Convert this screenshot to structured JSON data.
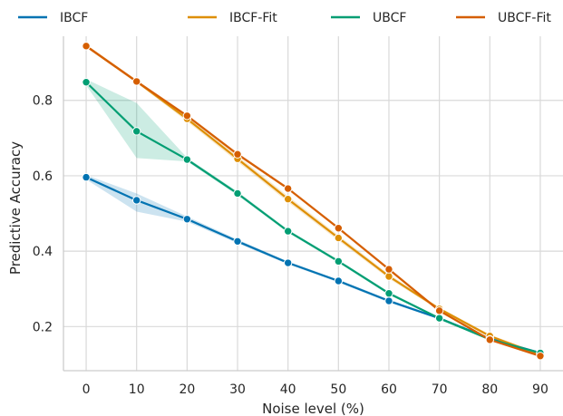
{
  "chart_data": {
    "type": "line",
    "title": "",
    "xlabel": "Noise level (%)",
    "ylabel": "Predictive Accuracy",
    "x": [
      0,
      10,
      20,
      30,
      40,
      50,
      60,
      70,
      80,
      90
    ],
    "xticks": [
      "0",
      "10",
      "20",
      "30",
      "40",
      "50",
      "60",
      "70",
      "80",
      "90"
    ],
    "yticks": [
      "0.2",
      "0.4",
      "0.6",
      "0.8"
    ],
    "xlim": [
      -4.5,
      94.5
    ],
    "ylim": [
      0.083,
      0.97
    ],
    "grid": true,
    "legend_position": "top",
    "series": [
      {
        "name": "IBCF",
        "color": "#0173b2",
        "values": [
          0.596,
          0.535,
          0.485,
          0.426,
          0.369,
          0.321,
          0.268,
          0.222,
          0.168,
          0.13
        ],
        "lower": [
          0.59,
          0.505,
          0.478,
          0.421,
          0.365,
          0.317,
          0.264,
          0.219,
          0.165,
          0.127
        ],
        "upper": [
          0.602,
          0.553,
          0.492,
          0.431,
          0.373,
          0.325,
          0.272,
          0.225,
          0.171,
          0.133
        ]
      },
      {
        "name": "IBCF-Fit",
        "color": "#de8f05",
        "values": [
          0.944,
          0.85,
          0.751,
          0.645,
          0.538,
          0.435,
          0.333,
          0.247,
          0.175,
          0.125
        ],
        "lower": [
          0.94,
          0.846,
          0.744,
          0.637,
          0.53,
          0.428,
          0.327,
          0.243,
          0.171,
          0.121
        ],
        "upper": [
          0.948,
          0.854,
          0.758,
          0.653,
          0.546,
          0.442,
          0.339,
          0.251,
          0.179,
          0.129
        ]
      },
      {
        "name": "UBCF",
        "color": "#029e73",
        "values": [
          0.848,
          0.718,
          0.643,
          0.553,
          0.453,
          0.373,
          0.288,
          0.222,
          0.166,
          0.13
        ],
        "lower": [
          0.84,
          0.647,
          0.638,
          0.548,
          0.449,
          0.369,
          0.284,
          0.219,
          0.163,
          0.127
        ],
        "upper": [
          0.856,
          0.793,
          0.648,
          0.558,
          0.457,
          0.377,
          0.292,
          0.225,
          0.169,
          0.133
        ]
      },
      {
        "name": "UBCF-Fit",
        "color": "#d55e00",
        "values": [
          0.944,
          0.85,
          0.759,
          0.657,
          0.566,
          0.461,
          0.352,
          0.242,
          0.165,
          0.122
        ],
        "lower": [
          0.94,
          0.846,
          0.755,
          0.653,
          0.562,
          0.457,
          0.348,
          0.239,
          0.162,
          0.119
        ],
        "upper": [
          0.948,
          0.854,
          0.763,
          0.661,
          0.57,
          0.465,
          0.356,
          0.245,
          0.168,
          0.125
        ]
      }
    ]
  }
}
